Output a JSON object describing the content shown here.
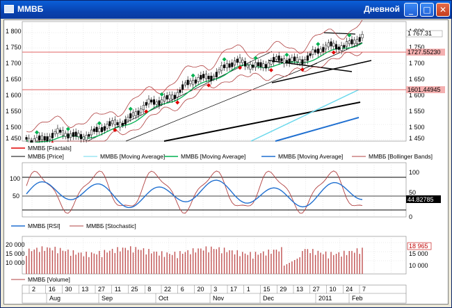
{
  "window": {
    "title": "ММВБ",
    "period": "Дневной",
    "min_glyph": "_",
    "max_glyph": "□",
    "close_glyph": "✕"
  },
  "price_panel": {
    "yticks": [
      "1 800",
      "1 750",
      "1 700",
      "1 650",
      "1 600",
      "1 550",
      "1 500",
      "1 450"
    ],
    "right_labels": {
      "last": "1 767.31",
      "upper": "1727.55230",
      "lower": "1601.44945"
    },
    "legend": [
      "ММВБ [Fractals]",
      "ММВБ [Price]",
      "ММВБ [Moving Average]",
      "ММВБ [Moving Average]",
      "ММВБ [Moving Average]",
      "ММВБ [Bollinger Bands]"
    ],
    "colors": {
      "fractal_up": "#00b050",
      "fractal_down": "#e00000",
      "ma_fast": "#00b050",
      "ma_mid": "#6ad8ec",
      "ma_slow": "#1f6fd0",
      "bollinger": "#b04040",
      "level": "#e06060"
    }
  },
  "osc_panel": {
    "yticks_right": [
      "100",
      "50",
      "0"
    ],
    "yticks_left": [
      "100",
      "50"
    ],
    "value": "44.82785",
    "legend": [
      "ММВБ [RSI]",
      "ММВБ [Stochastic]"
    ]
  },
  "volume_panel": {
    "yticks_left": [
      "20 000",
      "15 000",
      "10 000"
    ],
    "yticks_right": [
      "15 000",
      "10 000"
    ],
    "value": "18 965",
    "legend": [
      "ММВБ [Volume]"
    ]
  },
  "xaxis": {
    "days": [
      "2",
      "16",
      "30",
      "13",
      "27",
      "11",
      "25",
      "8",
      "22",
      "6",
      "20",
      "3",
      "17",
      "1",
      "15",
      "29",
      "13",
      "27",
      "10",
      "24",
      "7"
    ],
    "months": [
      "Aug",
      "Sep",
      "Oct",
      "Nov",
      "Dec",
      "2011",
      "Feb"
    ]
  }
}
